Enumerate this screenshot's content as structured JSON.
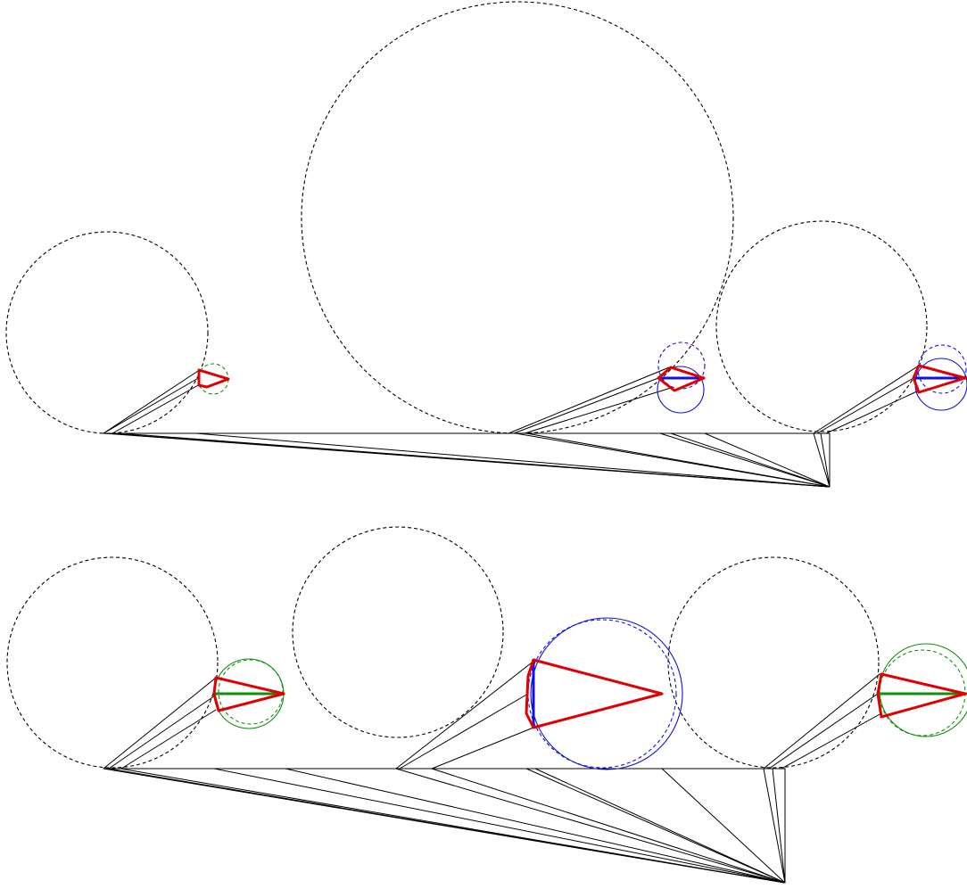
{
  "figure": {
    "description_free": true,
    "colors": {
      "construction": "#000000",
      "polygon": "#e00000",
      "blue_group": "#1010e0",
      "green_group": "#109010"
    },
    "panels": [
      {
        "id": "top",
        "groups": [
          {
            "accent": "green",
            "scale": "small"
          },
          {
            "accent": "blue",
            "scale": "small"
          },
          {
            "accent": "blue",
            "scale": "small"
          }
        ]
      },
      {
        "id": "bottom",
        "groups": [
          {
            "accent": "green",
            "scale": "medium"
          },
          {
            "accent": "blue",
            "scale": "large"
          },
          {
            "accent": "green",
            "scale": "medium"
          }
        ]
      }
    ]
  }
}
